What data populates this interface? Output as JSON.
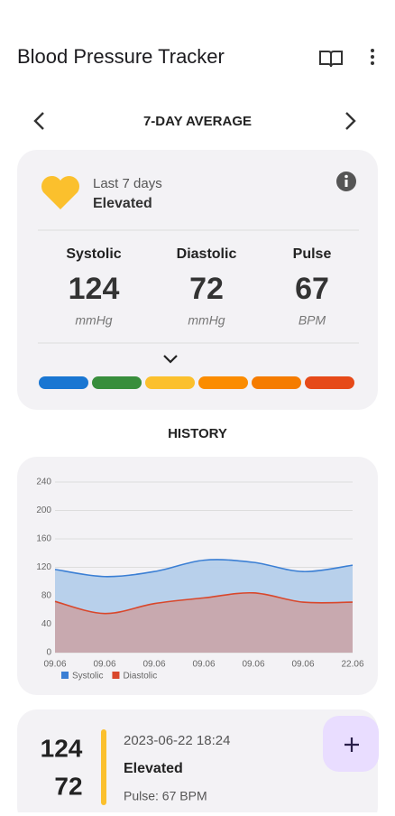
{
  "header": {
    "title": "Blood Pressure Tracker"
  },
  "nav": {
    "label": "7-DAY AVERAGE"
  },
  "summary": {
    "period": "Last 7 days",
    "status": "Elevated",
    "metrics": [
      {
        "label": "Systolic",
        "value": "124",
        "unit": "mmHg"
      },
      {
        "label": "Diastolic",
        "value": "72",
        "unit": "mmHg"
      },
      {
        "label": "Pulse",
        "value": "67",
        "unit": "BPM"
      }
    ],
    "scale_colors": [
      "#1976d2",
      "#388e3c",
      "#fbc02d",
      "#fb8c00",
      "#f57c00",
      "#e64a19"
    ]
  },
  "history": {
    "heading": "HISTORY"
  },
  "chart_data": {
    "type": "area",
    "categories": [
      "09.06",
      "09.06",
      "09.06",
      "09.06",
      "09.06",
      "09.06",
      "22.06"
    ],
    "series": [
      {
        "name": "Systolic",
        "color": "#3b7fd4",
        "fill": "#b4cdea",
        "values": [
          117,
          107,
          114,
          130,
          127,
          114,
          123
        ]
      },
      {
        "name": "Diastolic",
        "color": "#d9472b",
        "fill": "#c8a7ac",
        "values": [
          72,
          55,
          69,
          77,
          84,
          71,
          71
        ]
      }
    ],
    "ylim": [
      0,
      240
    ],
    "yticks": [
      0,
      40,
      80,
      120,
      160,
      200,
      240
    ],
    "grid": true
  },
  "entry": {
    "systolic": "124",
    "diastolic": "72",
    "datetime": "2023-06-22 18:24",
    "status": "Elevated",
    "pulse": "Pulse: 67 BPM"
  }
}
